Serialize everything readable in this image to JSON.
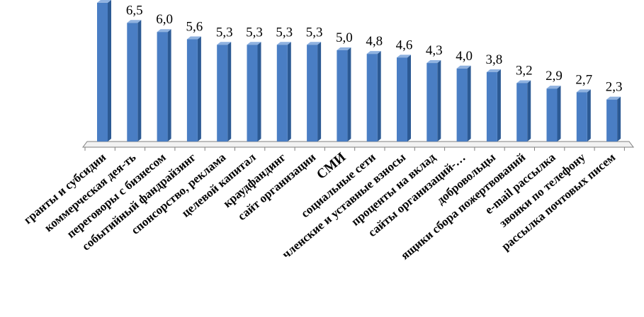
{
  "chart_data": {
    "type": "bar",
    "style": "3d-column",
    "title": "",
    "xlabel": "",
    "ylabel": "",
    "grid": false,
    "legend": "none",
    "ylim": [
      0,
      8
    ],
    "colors": {
      "bar_front": "#4A7EC4",
      "bar_side": "#2C5A94",
      "bar_top": "#8FB2E0",
      "axis": "#7f7f7f"
    },
    "categories": [
      "гранты и субсидии",
      "коммерческая дея-ть",
      "переговоры с бизнесом",
      "событийный фандрайзинг",
      "спонсорство, реклама",
      "целевой капитал",
      "краудфандинг",
      "сайт организации",
      "СМИ",
      "социальные сети",
      "членские и уставные взносы",
      "проценты на вклад",
      "сайты организаций-…",
      "добровольцы",
      "ящики сбора пожертвований",
      "e-mail рассылка",
      "звонки по телефону",
      "рассылка почтовых писем"
    ],
    "values": [
      7.6,
      6.5,
      6.0,
      5.6,
      5.3,
      5.3,
      5.3,
      5.3,
      5.0,
      4.8,
      4.6,
      4.3,
      4.0,
      3.8,
      3.2,
      2.9,
      2.7,
      2.3
    ],
    "data_labels": [
      "",
      "6,5",
      "6,0",
      "5,6",
      "5,3",
      "5,3",
      "5,3",
      "5,3",
      "5,0",
      "4,8",
      "4,6",
      "4,3",
      "4,0",
      "3,8",
      "3,2",
      "2,9",
      "2,7",
      "2,3"
    ]
  }
}
